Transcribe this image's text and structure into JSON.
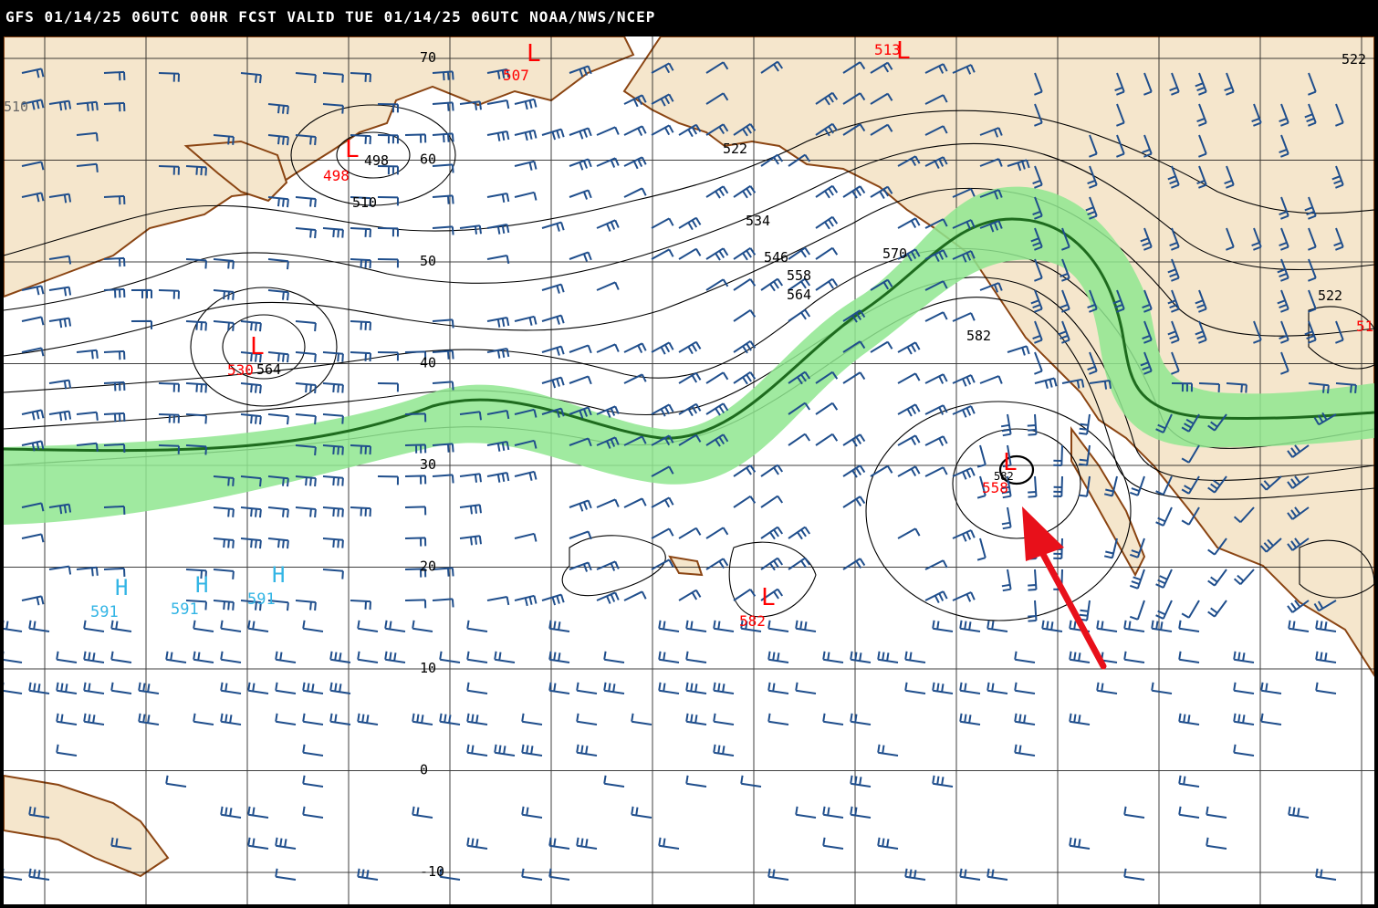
{
  "header": {
    "title": "GFS 01/14/25 06UTC 00HR FCST VALID TUE 01/14/25 06UTC NOAA/NWS/NCEP"
  },
  "colors": {
    "land": "#f5e6cc",
    "coast": "#8b4513",
    "grid": "#000000",
    "contour": "#000000",
    "barb": "#1f4e8c",
    "jet_fill": "#8fe68f",
    "jet_axis": "#1e6b1e",
    "low": "#ff0000",
    "high": "#33b5e5",
    "arrow": "#e8101a"
  },
  "lat_labels": [
    "70",
    "60",
    "50",
    "40",
    "30",
    "20",
    "10",
    "0",
    "-10"
  ],
  "contour_labels": [
    "510",
    "498",
    "510",
    "522",
    "534",
    "546",
    "558",
    "564",
    "570",
    "582",
    "522",
    "522"
  ],
  "lows": [
    {
      "letter": "L",
      "value": "507"
    },
    {
      "letter": "L",
      "value": "513"
    },
    {
      "letter": "L",
      "value": "498"
    },
    {
      "letter": "L",
      "value": "530"
    },
    {
      "letter": "L",
      "value": "558"
    },
    {
      "letter": "L",
      "value": "582"
    },
    {
      "letter": "L",
      "value": "51"
    }
  ],
  "highs": [
    {
      "letter": "H",
      "value": "591"
    },
    {
      "letter": "H",
      "value": "591"
    },
    {
      "letter": "H",
      "value": "591"
    }
  ],
  "misc_labels": [
    "564",
    "582"
  ]
}
